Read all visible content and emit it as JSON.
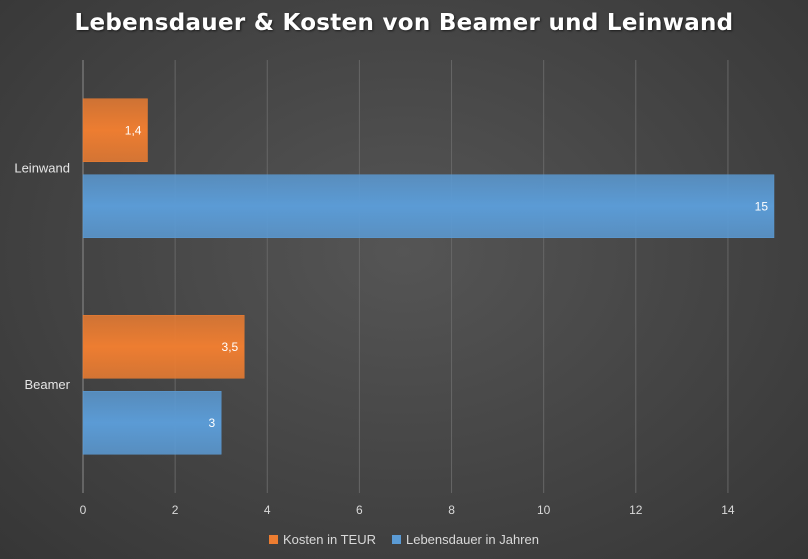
{
  "chart_data": {
    "type": "bar",
    "orientation": "horizontal",
    "title": "Lebensdauer & Kosten von Beamer und Leinwand",
    "categories": [
      "Beamer",
      "Leinwand"
    ],
    "series": [
      {
        "name": "Lebensdauer in Jahren",
        "values": [
          3,
          15
        ],
        "labels": [
          "3",
          "15"
        ],
        "color": "#5b9bd5"
      },
      {
        "name": "Kosten in TEUR",
        "values": [
          3.5,
          1.4
        ],
        "labels": [
          "3,5",
          "1,4"
        ],
        "color": "#ed7d31"
      }
    ],
    "xlim": [
      0,
      15
    ],
    "xticks": [
      0,
      2,
      4,
      6,
      8,
      10,
      12,
      14
    ],
    "xlabel": "",
    "ylabel": "",
    "grid": true,
    "legend": {
      "position": "bottom",
      "order": [
        "Kosten in TEUR",
        "Lebensdauer in Jahren"
      ]
    }
  }
}
